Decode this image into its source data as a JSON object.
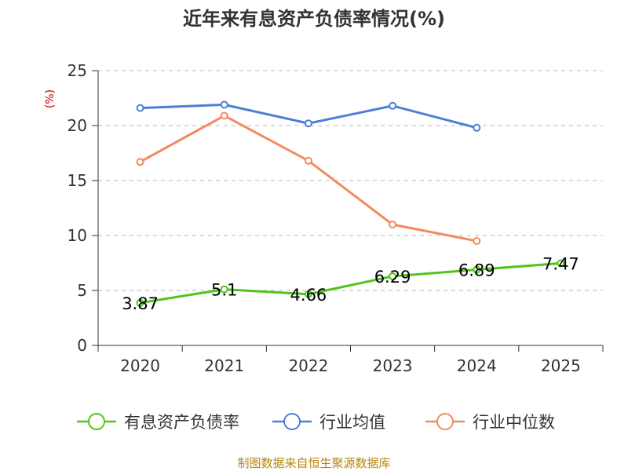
{
  "chart_data": {
    "type": "line",
    "title": "近年来有息资产负债率情况(%)",
    "ylabel": "(%)",
    "xlabel": "",
    "categories": [
      "2020",
      "2021",
      "2022",
      "2023",
      "2024",
      "2025"
    ],
    "ylim": [
      0,
      25
    ],
    "yticks": [
      0,
      5,
      10,
      15,
      20,
      25
    ],
    "grid": true,
    "legend_position": "bottom",
    "series": [
      {
        "name": "有息资产负债率",
        "color": "#52c41a",
        "values": [
          3.87,
          5.1,
          4.66,
          6.29,
          6.89,
          7.47
        ],
        "labels": [
          "3.87",
          "5.1",
          "4.66",
          "6.29",
          "6.89",
          "7.47"
        ]
      },
      {
        "name": "行业均值",
        "color": "#4a7fd8",
        "values": [
          21.6,
          21.9,
          20.2,
          21.8,
          19.8,
          null
        ]
      },
      {
        "name": "行业中位数",
        "color": "#f4895f",
        "values": [
          16.7,
          20.9,
          16.8,
          11.0,
          9.5,
          null
        ]
      }
    ],
    "source": "制图数据来自恒生聚源数据库"
  }
}
